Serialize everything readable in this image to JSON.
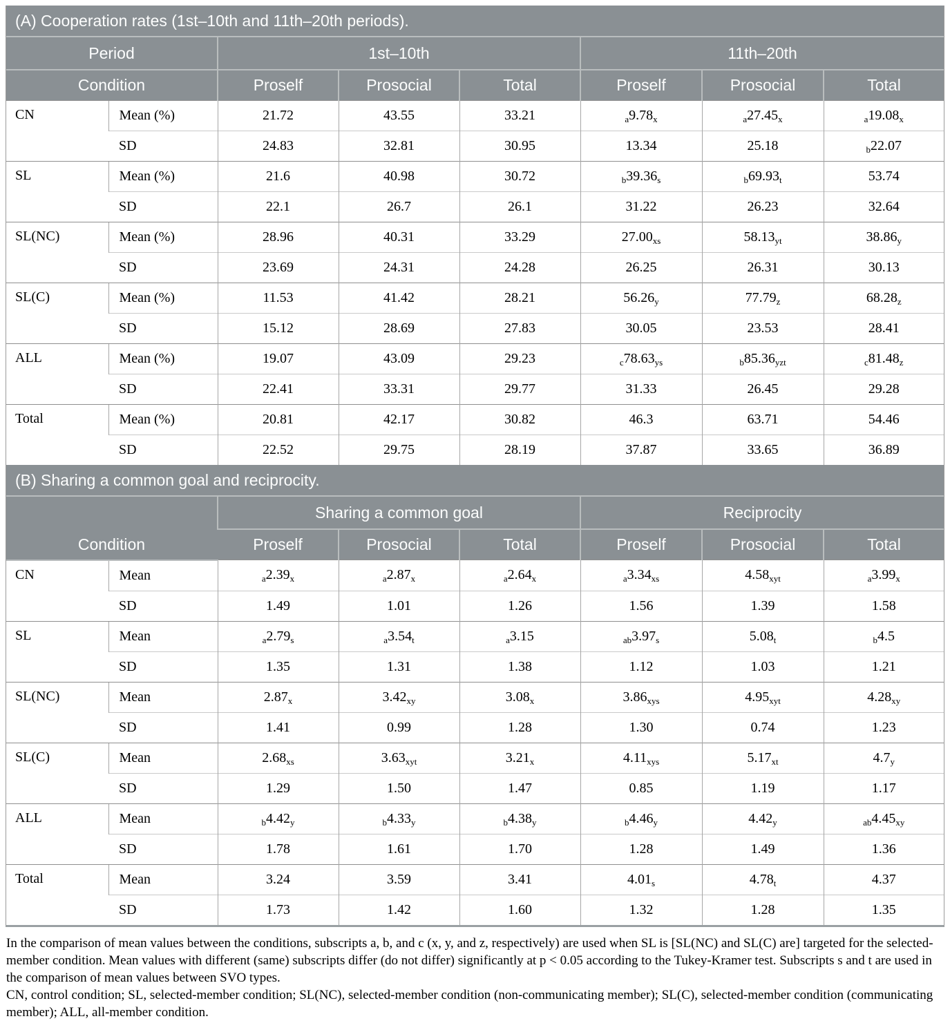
{
  "colors": {
    "header_bg": "#8a9094",
    "header_text": "#fcfdfd",
    "header_divider": "#b9bdbe",
    "column_divider": "#a6a6a6",
    "row_divider_light": "#c9c9c9",
    "group_divider": "#8e8e8e",
    "outer_border": "#9b9b9b"
  },
  "panelA": {
    "title": "(A) Cooperation rates (1st–10th and 11th–20th periods).",
    "period_label": "Period",
    "condition_label": "Condition",
    "groups": [
      "1st–10th",
      "11th–20th"
    ],
    "columns": [
      "Proself",
      "Prosocial",
      "Total",
      "Proself",
      "Prosocial",
      "Total"
    ],
    "rows": [
      {
        "condition": "CN",
        "stats": [
          {
            "label": "Mean (%)",
            "cells": [
              "21.72",
              "43.55",
              "33.21",
              {
                "pre": "a",
                "v": "9.78",
                "sub": "x"
              },
              {
                "pre": "a",
                "v": "27.45",
                "sub": "x"
              },
              {
                "pre": "a",
                "v": "19.08",
                "sub": "x"
              }
            ]
          },
          {
            "label": "SD",
            "cells": [
              "24.83",
              "32.81",
              "30.95",
              "13.34",
              "25.18",
              {
                "pre": "b",
                "v": "22.07"
              }
            ]
          }
        ]
      },
      {
        "condition": "SL",
        "stats": [
          {
            "label": "Mean (%)",
            "cells": [
              "21.6",
              "40.98",
              "30.72",
              {
                "pre": "b",
                "v": "39.36",
                "sub": "s"
              },
              {
                "pre": "b",
                "v": "69.93",
                "sub": "t"
              },
              "53.74"
            ]
          },
          {
            "label": "SD",
            "cells": [
              "22.1",
              "26.7",
              "26.1",
              "31.22",
              "26.23",
              "32.64"
            ]
          }
        ]
      },
      {
        "condition": "SL(NC)",
        "stats": [
          {
            "label": "Mean (%)",
            "cells": [
              "28.96",
              "40.31",
              "33.29",
              {
                "v": "27.00",
                "sub": "xs"
              },
              {
                "v": "58.13",
                "sub": "yt"
              },
              {
                "v": "38.86",
                "sub": "y"
              }
            ]
          },
          {
            "label": "SD",
            "cells": [
              "23.69",
              "24.31",
              "24.28",
              "26.25",
              "26.31",
              "30.13"
            ]
          }
        ]
      },
      {
        "condition": "SL(C)",
        "stats": [
          {
            "label": "Mean (%)",
            "cells": [
              "11.53",
              "41.42",
              "28.21",
              {
                "v": "56.26",
                "sub": "y"
              },
              {
                "v": "77.79",
                "sub": "z"
              },
              {
                "v": "68.28",
                "sub": "z"
              }
            ]
          },
          {
            "label": "SD",
            "cells": [
              "15.12",
              "28.69",
              "27.83",
              "30.05",
              "23.53",
              "28.41"
            ]
          }
        ]
      },
      {
        "condition": "ALL",
        "stats": [
          {
            "label": "Mean (%)",
            "cells": [
              "19.07",
              "43.09",
              "29.23",
              {
                "pre": "c",
                "v": "78.63",
                "sub": "ys"
              },
              {
                "pre": "b",
                "v": "85.36",
                "sub": "yzt"
              },
              {
                "pre": "c",
                "v": "81.48",
                "sub": "z"
              }
            ]
          },
          {
            "label": "SD",
            "cells": [
              "22.41",
              "33.31",
              "29.77",
              "31.33",
              "26.45",
              "29.28"
            ]
          }
        ]
      },
      {
        "condition": "Total",
        "stats": [
          {
            "label": "Mean (%)",
            "cells": [
              "20.81",
              "42.17",
              "30.82",
              "46.3",
              "63.71",
              "54.46"
            ]
          },
          {
            "label": "SD",
            "cells": [
              "22.52",
              "29.75",
              "28.19",
              "37.87",
              "33.65",
              "36.89"
            ]
          }
        ]
      }
    ]
  },
  "panelB": {
    "title": "(B) Sharing a common goal and reciprocity.",
    "condition_label": "Condition",
    "groups": [
      "Sharing a common goal",
      "Reciprocity"
    ],
    "columns": [
      "Proself",
      "Prosocial",
      "Total",
      "Proself",
      "Prosocial",
      "Total"
    ],
    "rows": [
      {
        "condition": "CN",
        "stats": [
          {
            "label": "Mean",
            "cells": [
              {
                "pre": "a",
                "v": "2.39",
                "sub": "x"
              },
              {
                "pre": "a",
                "v": "2.87",
                "sub": "x"
              },
              {
                "pre": "a",
                "v": "2.64",
                "sub": "x"
              },
              {
                "pre": "a",
                "v": "3.34",
                "sub": "xs"
              },
              {
                "v": "4.58",
                "sub": "xyt"
              },
              {
                "pre": "a",
                "v": "3.99",
                "sub": "x"
              }
            ]
          },
          {
            "label": "SD",
            "cells": [
              "1.49",
              "1.01",
              "1.26",
              "1.56",
              "1.39",
              "1.58"
            ]
          }
        ]
      },
      {
        "condition": "SL",
        "stats": [
          {
            "label": "Mean",
            "cells": [
              {
                "pre": "a",
                "v": "2.79",
                "sub": "s"
              },
              {
                "pre": "a",
                "v": "3.54",
                "sub": "t"
              },
              {
                "pre": "a",
                "v": "3.15"
              },
              {
                "pre": "ab",
                "v": "3.97",
                "sub": "s"
              },
              {
                "v": "5.08",
                "sub": "t"
              },
              {
                "pre": "b",
                "v": "4.5"
              }
            ]
          },
          {
            "label": "SD",
            "cells": [
              "1.35",
              "1.31",
              "1.38",
              "1.12",
              "1.03",
              "1.21"
            ]
          }
        ]
      },
      {
        "condition": "SL(NC)",
        "stats": [
          {
            "label": "Mean",
            "cells": [
              {
                "v": "2.87",
                "sub": "x"
              },
              {
                "v": "3.42",
                "sub": "xy"
              },
              {
                "v": "3.08",
                "sub": "x"
              },
              {
                "v": "3.86",
                "sub": "xys"
              },
              {
                "v": "4.95",
                "sub": "xyt"
              },
              {
                "v": "4.28",
                "sub": "xy"
              }
            ]
          },
          {
            "label": "SD",
            "cells": [
              "1.41",
              "0.99",
              "1.28",
              "1.30",
              "0.74",
              "1.23"
            ]
          }
        ]
      },
      {
        "condition": "SL(C)",
        "stats": [
          {
            "label": "Mean",
            "cells": [
              {
                "v": "2.68",
                "sub": "xs"
              },
              {
                "v": "3.63",
                "sub": "xyt"
              },
              {
                "v": "3.21",
                "sub": "x"
              },
              {
                "v": "4.11",
                "sub": "xys"
              },
              {
                "v": "5.17",
                "sub": "xt"
              },
              {
                "v": "4.7",
                "sub": "y"
              }
            ]
          },
          {
            "label": "SD",
            "cells": [
              "1.29",
              "1.50",
              "1.47",
              "0.85",
              "1.19",
              "1.17"
            ]
          }
        ]
      },
      {
        "condition": "ALL",
        "stats": [
          {
            "label": "Mean",
            "cells": [
              {
                "pre": "b",
                "v": "4.42",
                "sub": "y"
              },
              {
                "pre": "b",
                "v": "4.33",
                "sub": "y"
              },
              {
                "pre": "b",
                "v": "4.38",
                "sub": "y"
              },
              {
                "pre": "b",
                "v": "4.46",
                "sub": "y"
              },
              {
                "v": "4.42",
                "sub": "y"
              },
              {
                "pre": "ab",
                "v": "4.45",
                "sub": "xy"
              }
            ]
          },
          {
            "label": "SD",
            "cells": [
              "1.78",
              "1.61",
              "1.70",
              "1.28",
              "1.49",
              "1.36"
            ]
          }
        ]
      },
      {
        "condition": "Total",
        "stats": [
          {
            "label": "Mean",
            "cells": [
              "3.24",
              "3.59",
              "3.41",
              {
                "v": "4.01",
                "sub": "s"
              },
              {
                "v": "4.78",
                "sub": "t"
              },
              "4.37"
            ]
          },
          {
            "label": "SD",
            "cells": [
              "1.73",
              "1.42",
              "1.60",
              "1.32",
              "1.28",
              "1.35"
            ]
          }
        ]
      }
    ]
  },
  "footnotes": [
    "In the comparison of mean values between the conditions, subscripts a, b, and c (x, y, and z, respectively) are used when SL is [SL(NC) and SL(C) are] targeted for the selected-member condition. Mean values with different (same) subscripts differ (do not differ) significantly at p < 0.05 according to the Tukey-Kramer test. Subscripts s and t are used in the comparison of mean values between SVO types.",
    "CN, control condition; SL, selected-member condition; SL(NC), selected-member condition (non-communicating member); SL(C), selected-member condition (communicating member); ALL, all-member condition."
  ]
}
